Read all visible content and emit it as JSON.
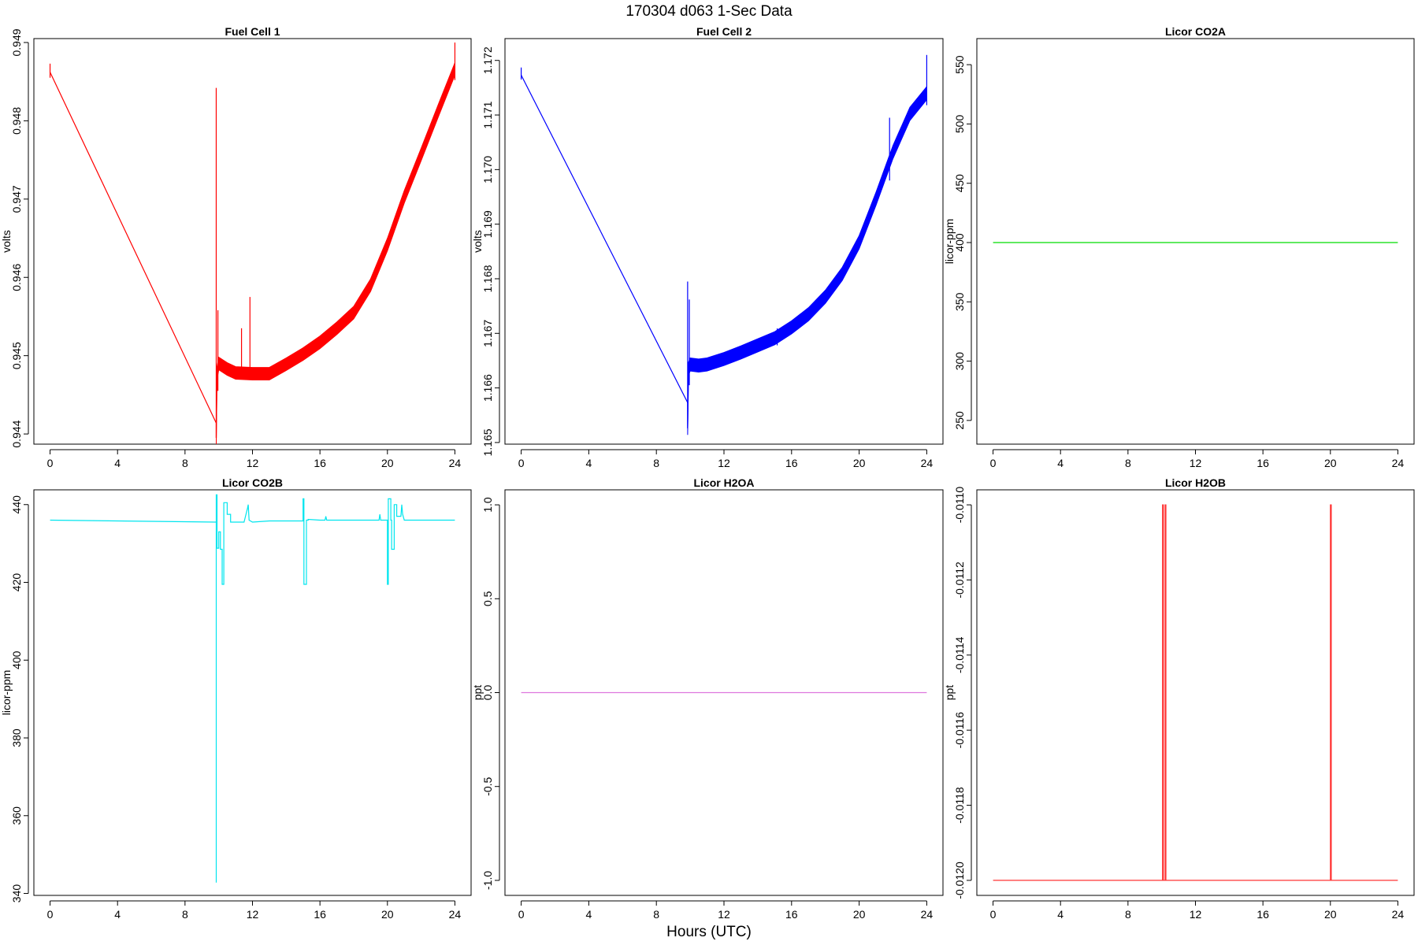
{
  "page": {
    "title": "170304   d063   1-Sec Data",
    "xlabel": "Hours (UTC)"
  },
  "colors": {
    "fuel_cell_1": "#ff0000",
    "fuel_cell_2": "#0000ff",
    "licor_co2a": "#00dd00",
    "licor_co2b": "#00e5ee",
    "licor_h2oa": "#dd77dd",
    "licor_h2ob": "#ff3333"
  },
  "chart_data": [
    {
      "type": "line",
      "title": "Fuel Cell 1",
      "ylabel": "volts",
      "xlabel": "",
      "color": "#ff0000",
      "xlim": [
        0,
        24
      ],
      "ylim": [
        0.94387,
        0.94905
      ],
      "xticks": [
        0,
        4,
        8,
        12,
        16,
        20,
        24
      ],
      "yticks": [
        0.944,
        0.945,
        0.946,
        0.947,
        0.948,
        0.949
      ],
      "ytick_labels": [
        "0.944",
        "0.945",
        "0.946",
        "0.947",
        "0.948",
        "0.949"
      ],
      "x": [
        0,
        9.85,
        9.85,
        9.9,
        10,
        10.5,
        11,
        12,
        13,
        14,
        15,
        16,
        17,
        18,
        19,
        20,
        21,
        22,
        23,
        24
      ],
      "y": [
        0.94862,
        0.94414,
        0.94395,
        0.94478,
        0.9449,
        0.94483,
        0.94478,
        0.94477,
        0.94477,
        0.94489,
        0.94502,
        0.94517,
        0.94535,
        0.94555,
        0.9459,
        0.94642,
        0.94703,
        0.94757,
        0.94812,
        0.94866
      ],
      "band": 8e-05,
      "spikes": [
        {
          "x": 0.0,
          "y1": 0.94855,
          "y2": 0.94873
        },
        {
          "x": 9.85,
          "y1": 0.94395,
          "y2": 0.94842
        },
        {
          "x": 9.95,
          "y1": 0.94455,
          "y2": 0.94558
        },
        {
          "x": 11.35,
          "y1": 0.94483,
          "y2": 0.94535
        },
        {
          "x": 11.85,
          "y1": 0.94483,
          "y2": 0.94575
        },
        {
          "x": 24.0,
          "y1": 0.94852,
          "y2": 0.949
        }
      ]
    },
    {
      "type": "line",
      "title": "Fuel Cell 2",
      "ylabel": "volts",
      "xlabel": "",
      "color": "#0000ff",
      "xlim": [
        0,
        24
      ],
      "ylim": [
        1.16497,
        1.1724
      ],
      "xticks": [
        0,
        4,
        8,
        12,
        16,
        20,
        24
      ],
      "yticks": [
        1.165,
        1.166,
        1.167,
        1.168,
        1.169,
        1.17,
        1.171,
        1.172
      ],
      "ytick_labels": [
        "1.165",
        "1.166",
        "1.167",
        "1.168",
        "1.169",
        "1.170",
        "1.171",
        "1.172"
      ],
      "x": [
        0,
        9.85,
        9.85,
        9.9,
        10,
        10.5,
        11,
        12,
        13,
        14,
        15,
        16,
        17,
        18,
        19,
        20,
        21,
        22,
        23,
        24
      ],
      "y": [
        1.17173,
        1.16573,
        1.16526,
        1.16635,
        1.16643,
        1.16641,
        1.16643,
        1.16653,
        1.16665,
        1.16678,
        1.16691,
        1.16711,
        1.16735,
        1.16767,
        1.16809,
        1.16867,
        1.16947,
        1.17032,
        1.17102,
        1.1714
      ],
      "band": 0.00012,
      "spikes": [
        {
          "x": 0.0,
          "y1": 1.17165,
          "y2": 1.17187
        },
        {
          "x": 9.85,
          "y1": 1.16526,
          "y2": 1.16795
        },
        {
          "x": 9.95,
          "y1": 1.16605,
          "y2": 1.16762
        },
        {
          "x": 15.15,
          "y1": 1.16678,
          "y2": 1.16709
        },
        {
          "x": 21.8,
          "y1": 1.1698,
          "y2": 1.17095
        },
        {
          "x": 24.0,
          "y1": 1.17118,
          "y2": 1.1721
        }
      ]
    },
    {
      "type": "line",
      "title": "Licor CO2A",
      "ylabel": "licor-ppm",
      "xlabel": "",
      "color": "#00dd00",
      "xlim": [
        0,
        24
      ],
      "ylim": [
        230,
        572
      ],
      "xticks": [
        0,
        4,
        8,
        12,
        16,
        20,
        24
      ],
      "yticks": [
        250,
        300,
        350,
        400,
        450,
        500,
        550
      ],
      "ytick_labels": [
        "250",
        "300",
        "350",
        "400",
        "450",
        "500",
        "550"
      ],
      "x": [
        0,
        24
      ],
      "y": [
        400,
        400
      ],
      "band": 0,
      "spikes": []
    },
    {
      "type": "line",
      "title": "Licor CO2B",
      "ylabel": "licor-ppm",
      "xlabel": "",
      "color": "#00e5ee",
      "xlim": [
        0,
        24
      ],
      "ylim": [
        339.5,
        443.8
      ],
      "xticks": [
        0,
        4,
        8,
        12,
        16,
        20,
        24
      ],
      "yticks": [
        340,
        360,
        380,
        400,
        420,
        440
      ],
      "ytick_labels": [
        "340",
        "360",
        "380",
        "400",
        "420",
        "440"
      ],
      "x": [
        0,
        9.85,
        9.85,
        9.85,
        9.9,
        9.9,
        10.0,
        10.0,
        10.1,
        10.1,
        10.2,
        10.2,
        10.3,
        10.3,
        10.5,
        10.5,
        10.7,
        10.7,
        10.85,
        10.85,
        11.0,
        11.5,
        11.7,
        11.75,
        11.8,
        12.0,
        13.0,
        14.0,
        15.0,
        15.0,
        15.05,
        15.05,
        15.2,
        15.2,
        15.3,
        15.3,
        16.0,
        16.3,
        16.35,
        16.4,
        17.0,
        18.0,
        19.0,
        19.5,
        19.55,
        19.6,
        20.0,
        20.0,
        20.05,
        20.05,
        20.2,
        20.2,
        20.25,
        20.25,
        20.4,
        20.4,
        20.55,
        20.55,
        20.8,
        20.85,
        20.9,
        21.0,
        22.0,
        23.0,
        24.0
      ],
      "y": [
        436,
        435.5,
        342.8,
        442.5,
        442.5,
        428.8,
        428.8,
        433,
        433,
        428.5,
        428.5,
        419.5,
        419.5,
        440.5,
        440.5,
        437.5,
        437.5,
        435.5,
        435.5,
        435.5,
        435.5,
        435.5,
        439,
        440,
        436,
        435.5,
        435.8,
        435.8,
        435.8,
        441.5,
        441.5,
        419.5,
        419.5,
        436,
        436,
        436.2,
        436,
        436,
        437,
        436,
        436,
        436,
        436,
        436,
        437.5,
        436,
        436,
        419.5,
        419.5,
        441.5,
        441.5,
        436,
        436,
        428.5,
        428.5,
        440,
        440,
        437,
        437,
        440,
        437.5,
        436,
        436,
        436,
        436
      ],
      "band": 0,
      "spikes": []
    },
    {
      "type": "line",
      "title": "Licor H2OA",
      "ylabel": "ppt",
      "xlabel": "",
      "color": "#dd77dd",
      "xlim": [
        0,
        24
      ],
      "ylim": [
        -1.08,
        1.08
      ],
      "xticks": [
        0,
        4,
        8,
        12,
        16,
        20,
        24
      ],
      "yticks": [
        -1.0,
        -0.5,
        0.0,
        0.5,
        1.0
      ],
      "ytick_labels": [
        "-1.0",
        "-0.5",
        "0.0",
        "0.5",
        "1.0"
      ],
      "x": [
        0,
        24
      ],
      "y": [
        0,
        0
      ],
      "band": 0,
      "spikes": []
    },
    {
      "type": "line",
      "title": "Licor H2OB",
      "ylabel": "ppt",
      "xlabel": "",
      "color": "#ff3333",
      "xlim": [
        0,
        24
      ],
      "ylim": [
        -0.01204,
        -0.01096
      ],
      "xticks": [
        0,
        4,
        8,
        12,
        16,
        20,
        24
      ],
      "yticks": [
        -0.012,
        -0.0118,
        -0.0116,
        -0.0114,
        -0.0112,
        -0.011
      ],
      "ytick_labels": [
        "-0.0120",
        "-0.0118",
        "-0.0116",
        "-0.0114",
        "-0.0112",
        "-0.0110"
      ],
      "x": [
        0,
        10.05,
        10.05,
        10.1,
        10.1,
        10.2,
        10.2,
        10.25,
        10.25,
        20.0,
        20.0,
        20.05,
        20.05,
        24
      ],
      "y": [
        -0.012,
        -0.012,
        -0.011,
        -0.011,
        -0.012,
        -0.012,
        -0.011,
        -0.011,
        -0.012,
        -0.012,
        -0.011,
        -0.011,
        -0.012,
        -0.012
      ],
      "band": 0,
      "spikes": []
    }
  ]
}
